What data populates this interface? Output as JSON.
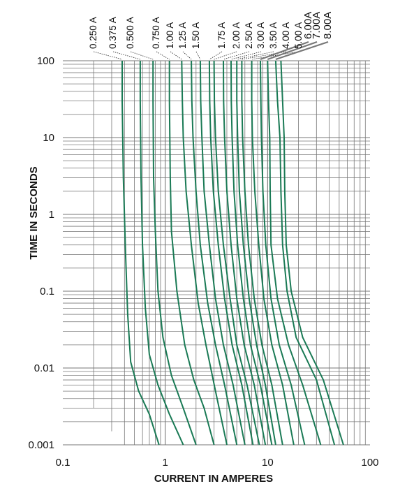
{
  "chart_data": {
    "type": "line",
    "xlabel": "CURRENT IN AMPERES",
    "ylabel": "TIME IN SECONDS",
    "xscale": "log",
    "yscale": "log",
    "xlim": [
      0.1,
      100
    ],
    "ylim": [
      0.001,
      100
    ],
    "grid": true,
    "x_tick_labels": [
      "0.1",
      "1",
      "10",
      "100"
    ],
    "y_tick_labels": [
      "0.001",
      "0.01",
      "0.1",
      "1",
      "10",
      "100"
    ],
    "line_color": "#1a7a55",
    "grid_color": "#777777",
    "series": [
      {
        "name": "0.250 A",
        "points": [
          [
            0.38,
            100
          ],
          [
            0.38,
            30
          ],
          [
            0.39,
            3
          ],
          [
            0.41,
            0.3
          ],
          [
            0.43,
            0.05
          ],
          [
            0.46,
            0.012
          ],
          [
            0.55,
            0.005
          ],
          [
            0.7,
            0.0025
          ],
          [
            0.87,
            0.001
          ]
        ]
      },
      {
        "name": "0.375 A",
        "points": [
          [
            0.57,
            100
          ],
          [
            0.57,
            30
          ],
          [
            0.58,
            3
          ],
          [
            0.6,
            0.4
          ],
          [
            0.64,
            0.06
          ],
          [
            0.7,
            0.015
          ],
          [
            0.85,
            0.006
          ],
          [
            1.1,
            0.0025
          ],
          [
            1.5,
            0.001
          ]
        ]
      },
      {
        "name": "0.500 A",
        "points": [
          [
            0.76,
            100
          ],
          [
            0.76,
            30
          ],
          [
            0.77,
            3
          ],
          [
            0.8,
            0.6
          ],
          [
            0.85,
            0.1
          ],
          [
            0.95,
            0.025
          ],
          [
            1.15,
            0.008
          ],
          [
            1.5,
            0.003
          ],
          [
            2.0,
            0.001
          ]
        ]
      },
      {
        "name": "0.750 A",
        "points": [
          [
            1.1,
            100
          ],
          [
            1.1,
            30
          ],
          [
            1.12,
            3
          ],
          [
            1.15,
            0.6
          ],
          [
            1.3,
            0.1
          ],
          [
            1.55,
            0.02
          ],
          [
            1.9,
            0.007
          ],
          [
            2.4,
            0.003
          ],
          [
            3.0,
            0.001
          ]
        ]
      },
      {
        "name": "1.00 A",
        "points": [
          [
            1.45,
            100
          ],
          [
            1.47,
            30
          ],
          [
            1.5,
            10
          ],
          [
            1.6,
            2
          ],
          [
            1.8,
            0.4
          ],
          [
            2.1,
            0.07
          ],
          [
            2.5,
            0.02
          ],
          [
            3.1,
            0.005
          ],
          [
            4.0,
            0.001
          ]
        ]
      },
      {
        "name": "1.25 A",
        "points": [
          [
            1.8,
            100
          ],
          [
            1.82,
            30
          ],
          [
            1.87,
            10
          ],
          [
            2.0,
            2
          ],
          [
            2.2,
            0.4
          ],
          [
            2.6,
            0.07
          ],
          [
            3.1,
            0.02
          ],
          [
            3.8,
            0.006
          ],
          [
            5.0,
            0.001
          ]
        ]
      },
      {
        "name": "1.50 A",
        "points": [
          [
            2.2,
            100
          ],
          [
            2.22,
            30
          ],
          [
            2.28,
            10
          ],
          [
            2.4,
            2
          ],
          [
            2.7,
            0.4
          ],
          [
            3.1,
            0.08
          ],
          [
            3.7,
            0.02
          ],
          [
            4.6,
            0.006
          ],
          [
            6.0,
            0.001
          ]
        ]
      },
      {
        "name": "1.75 A",
        "points": [
          [
            2.7,
            100
          ],
          [
            2.72,
            30
          ],
          [
            2.78,
            10
          ],
          [
            2.95,
            2
          ],
          [
            3.3,
            0.4
          ],
          [
            3.8,
            0.08
          ],
          [
            4.5,
            0.02
          ],
          [
            5.6,
            0.006
          ],
          [
            7.2,
            0.001
          ]
        ]
      },
      {
        "name": "2.00 A",
        "points": [
          [
            3.0,
            100
          ],
          [
            3.02,
            30
          ],
          [
            3.1,
            10
          ],
          [
            3.3,
            2
          ],
          [
            3.7,
            0.4
          ],
          [
            4.3,
            0.08
          ],
          [
            5.0,
            0.02
          ],
          [
            6.3,
            0.006
          ],
          [
            8.3,
            0.001
          ]
        ]
      },
      {
        "name": "2.50 A",
        "points": [
          [
            3.7,
            100
          ],
          [
            3.72,
            30
          ],
          [
            3.8,
            10
          ],
          [
            4.0,
            2
          ],
          [
            4.4,
            0.4
          ],
          [
            5.0,
            0.08
          ],
          [
            5.9,
            0.02
          ],
          [
            7.4,
            0.006
          ],
          [
            9.5,
            0.001
          ]
        ]
      },
      {
        "name": "3.00 A",
        "points": [
          [
            4.4,
            100
          ],
          [
            4.42,
            30
          ],
          [
            4.5,
            10
          ],
          [
            4.7,
            2
          ],
          [
            5.1,
            0.4
          ],
          [
            5.8,
            0.08
          ],
          [
            6.8,
            0.02
          ],
          [
            8.5,
            0.006
          ],
          [
            11.0,
            0.001
          ]
        ]
      },
      {
        "name": "3.50 A",
        "points": [
          [
            5.0,
            100
          ],
          [
            5.0,
            30
          ],
          [
            5.1,
            10
          ],
          [
            5.3,
            2
          ],
          [
            5.8,
            0.4
          ],
          [
            6.6,
            0.08
          ],
          [
            7.8,
            0.02
          ],
          [
            9.5,
            0.006
          ],
          [
            12.0,
            0.001
          ]
        ]
      },
      {
        "name": "4.00 A",
        "points": [
          [
            5.6,
            100
          ],
          [
            5.6,
            30
          ],
          [
            5.7,
            10
          ],
          [
            6.0,
            2
          ],
          [
            6.5,
            0.4
          ],
          [
            7.4,
            0.08
          ],
          [
            8.8,
            0.02
          ],
          [
            11.0,
            0.006
          ],
          [
            14.0,
            0.001
          ]
        ]
      },
      {
        "name": "5.00 A",
        "points": [
          [
            7.0,
            100
          ],
          [
            7.0,
            30
          ],
          [
            7.1,
            10
          ],
          [
            7.5,
            2
          ],
          [
            8.2,
            0.4
          ],
          [
            9.2,
            0.08
          ],
          [
            11.0,
            0.02
          ],
          [
            14.0,
            0.006
          ],
          [
            18.0,
            0.001
          ]
        ]
      },
      {
        "name": "6.00A",
        "points": [
          [
            8.5,
            100
          ],
          [
            8.6,
            30
          ],
          [
            8.7,
            10
          ],
          [
            9.0,
            2
          ],
          [
            9.6,
            0.4
          ],
          [
            10.8,
            0.08
          ],
          [
            13.0,
            0.02
          ],
          [
            17.0,
            0.006
          ],
          [
            23.0,
            0.001
          ]
        ]
      },
      {
        "name": "7.00A",
        "points": [
          [
            10.0,
            100
          ],
          [
            10.2,
            30
          ],
          [
            10.5,
            10
          ],
          [
            10.6,
            2
          ],
          [
            10.8,
            0.4
          ],
          [
            12.5,
            0.08
          ],
          [
            16.0,
            0.02
          ],
          [
            22.0,
            0.006
          ],
          [
            33.0,
            0.001
          ]
        ]
      },
      {
        "name": "8.00A",
        "points": [
          [
            12.0,
            100
          ],
          [
            12.5,
            30
          ],
          [
            13.2,
            10
          ],
          [
            13.5,
            2
          ],
          [
            14.0,
            0.4
          ],
          [
            15.5,
            0.1
          ],
          [
            19.0,
            0.025
          ],
          [
            30.0,
            0.007
          ],
          [
            45.0,
            0.001
          ]
        ]
      },
      {
        "name": "",
        "points": [
          [
            13.5,
            100
          ],
          [
            14.0,
            30
          ],
          [
            14.5,
            10
          ],
          [
            14.7,
            2
          ],
          [
            15.2,
            0.4
          ],
          [
            17.0,
            0.1
          ],
          [
            22.0,
            0.025
          ],
          [
            35.0,
            0.007
          ],
          [
            55.0,
            0.001
          ]
        ]
      }
    ]
  }
}
